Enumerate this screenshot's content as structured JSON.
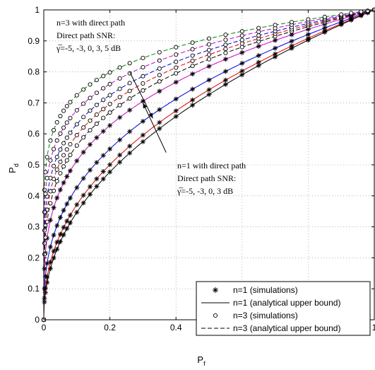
{
  "chart_data": {
    "type": "line",
    "title": "",
    "xlabel": "P",
    "xlabel_sub": "f",
    "ylabel": "P",
    "ylabel_sub": "d",
    "xlim": [
      0,
      1
    ],
    "ylim": [
      0,
      1
    ],
    "xticks": [
      "0",
      "0.2",
      "0.4",
      "0.6",
      "0.8",
      "1"
    ],
    "yticks": [
      "0",
      "0.1",
      "0.2",
      "0.3",
      "0.4",
      "0.5",
      "0.6",
      "0.7",
      "0.8",
      "0.9",
      "1"
    ],
    "grid": true,
    "legend_position": "bottom-right",
    "legend": [
      {
        "marker": "asterisk",
        "line": "none",
        "label": "n=1 (simulations)"
      },
      {
        "marker": "none",
        "line": "solid",
        "label": "n=1 (analytical upper bound)"
      },
      {
        "marker": "circle",
        "line": "none",
        "label": "n=3 (simulations)"
      },
      {
        "marker": "none",
        "line": "dashed",
        "label": "n=3  (analytical upper bound)"
      }
    ],
    "annotations": [
      {
        "lines": [
          "n=3 with direct path",
          "Direct path SNR:",
          "γ̅=-5, -3, 0, 3, 5 dB"
        ],
        "arrow_from": [
          0.26,
          0.8
        ],
        "arrow_to": [
          0.33,
          0.65
        ]
      },
      {
        "lines": [
          "n=1 with direct path",
          "Direct path SNR:",
          "γ̅=-5, -3, 0, 3 dB"
        ],
        "arrow_from": [
          0.37,
          0.54
        ],
        "arrow_to": [
          0.3,
          0.7
        ]
      }
    ],
    "x_markers": [
      0,
      0.002,
      0.005,
      0.01,
      0.02,
      0.03,
      0.04,
      0.05,
      0.06,
      0.07,
      0.08,
      0.1,
      0.12,
      0.14,
      0.16,
      0.18,
      0.2,
      0.23,
      0.26,
      0.3,
      0.35,
      0.4,
      0.45,
      0.5,
      0.55,
      0.6,
      0.65,
      0.7,
      0.75,
      0.8,
      0.85,
      0.9,
      0.93,
      0.96,
      0.98,
      1
    ],
    "series": [
      {
        "name": "",
        "group": "n1",
        "color": "#000000",
        "marker": "asterisk",
        "line": "solid",
        "exponent": 0.46
      },
      {
        "name": "",
        "group": "n1",
        "color": "#e00000",
        "marker": "asterisk",
        "line": "solid",
        "exponent": 0.43
      },
      {
        "name": "",
        "group": "n1",
        "color": "#0000e0",
        "marker": "asterisk",
        "line": "solid",
        "exponent": 0.37
      },
      {
        "name": "",
        "group": "n1",
        "color": "#cc00cc",
        "marker": "asterisk",
        "line": "solid",
        "exponent": 0.29
      },
      {
        "name": "",
        "group": "n3",
        "color": "#000000",
        "marker": "circle",
        "line": "dashed",
        "exponent": 0.25
      },
      {
        "name": "",
        "group": "n3",
        "color": "#e00000",
        "marker": "circle",
        "line": "dashed",
        "exponent": 0.225
      },
      {
        "name": "",
        "group": "n3",
        "color": "#0000e0",
        "marker": "circle",
        "line": "dashed",
        "exponent": 0.2
      },
      {
        "name": "",
        "group": "n3",
        "color": "#cc00cc",
        "marker": "circle",
        "line": "dashed",
        "exponent": 0.17
      },
      {
        "name": "",
        "group": "n3",
        "color": "#008800",
        "marker": "circle",
        "line": "dashed",
        "exponent": 0.14
      }
    ]
  }
}
